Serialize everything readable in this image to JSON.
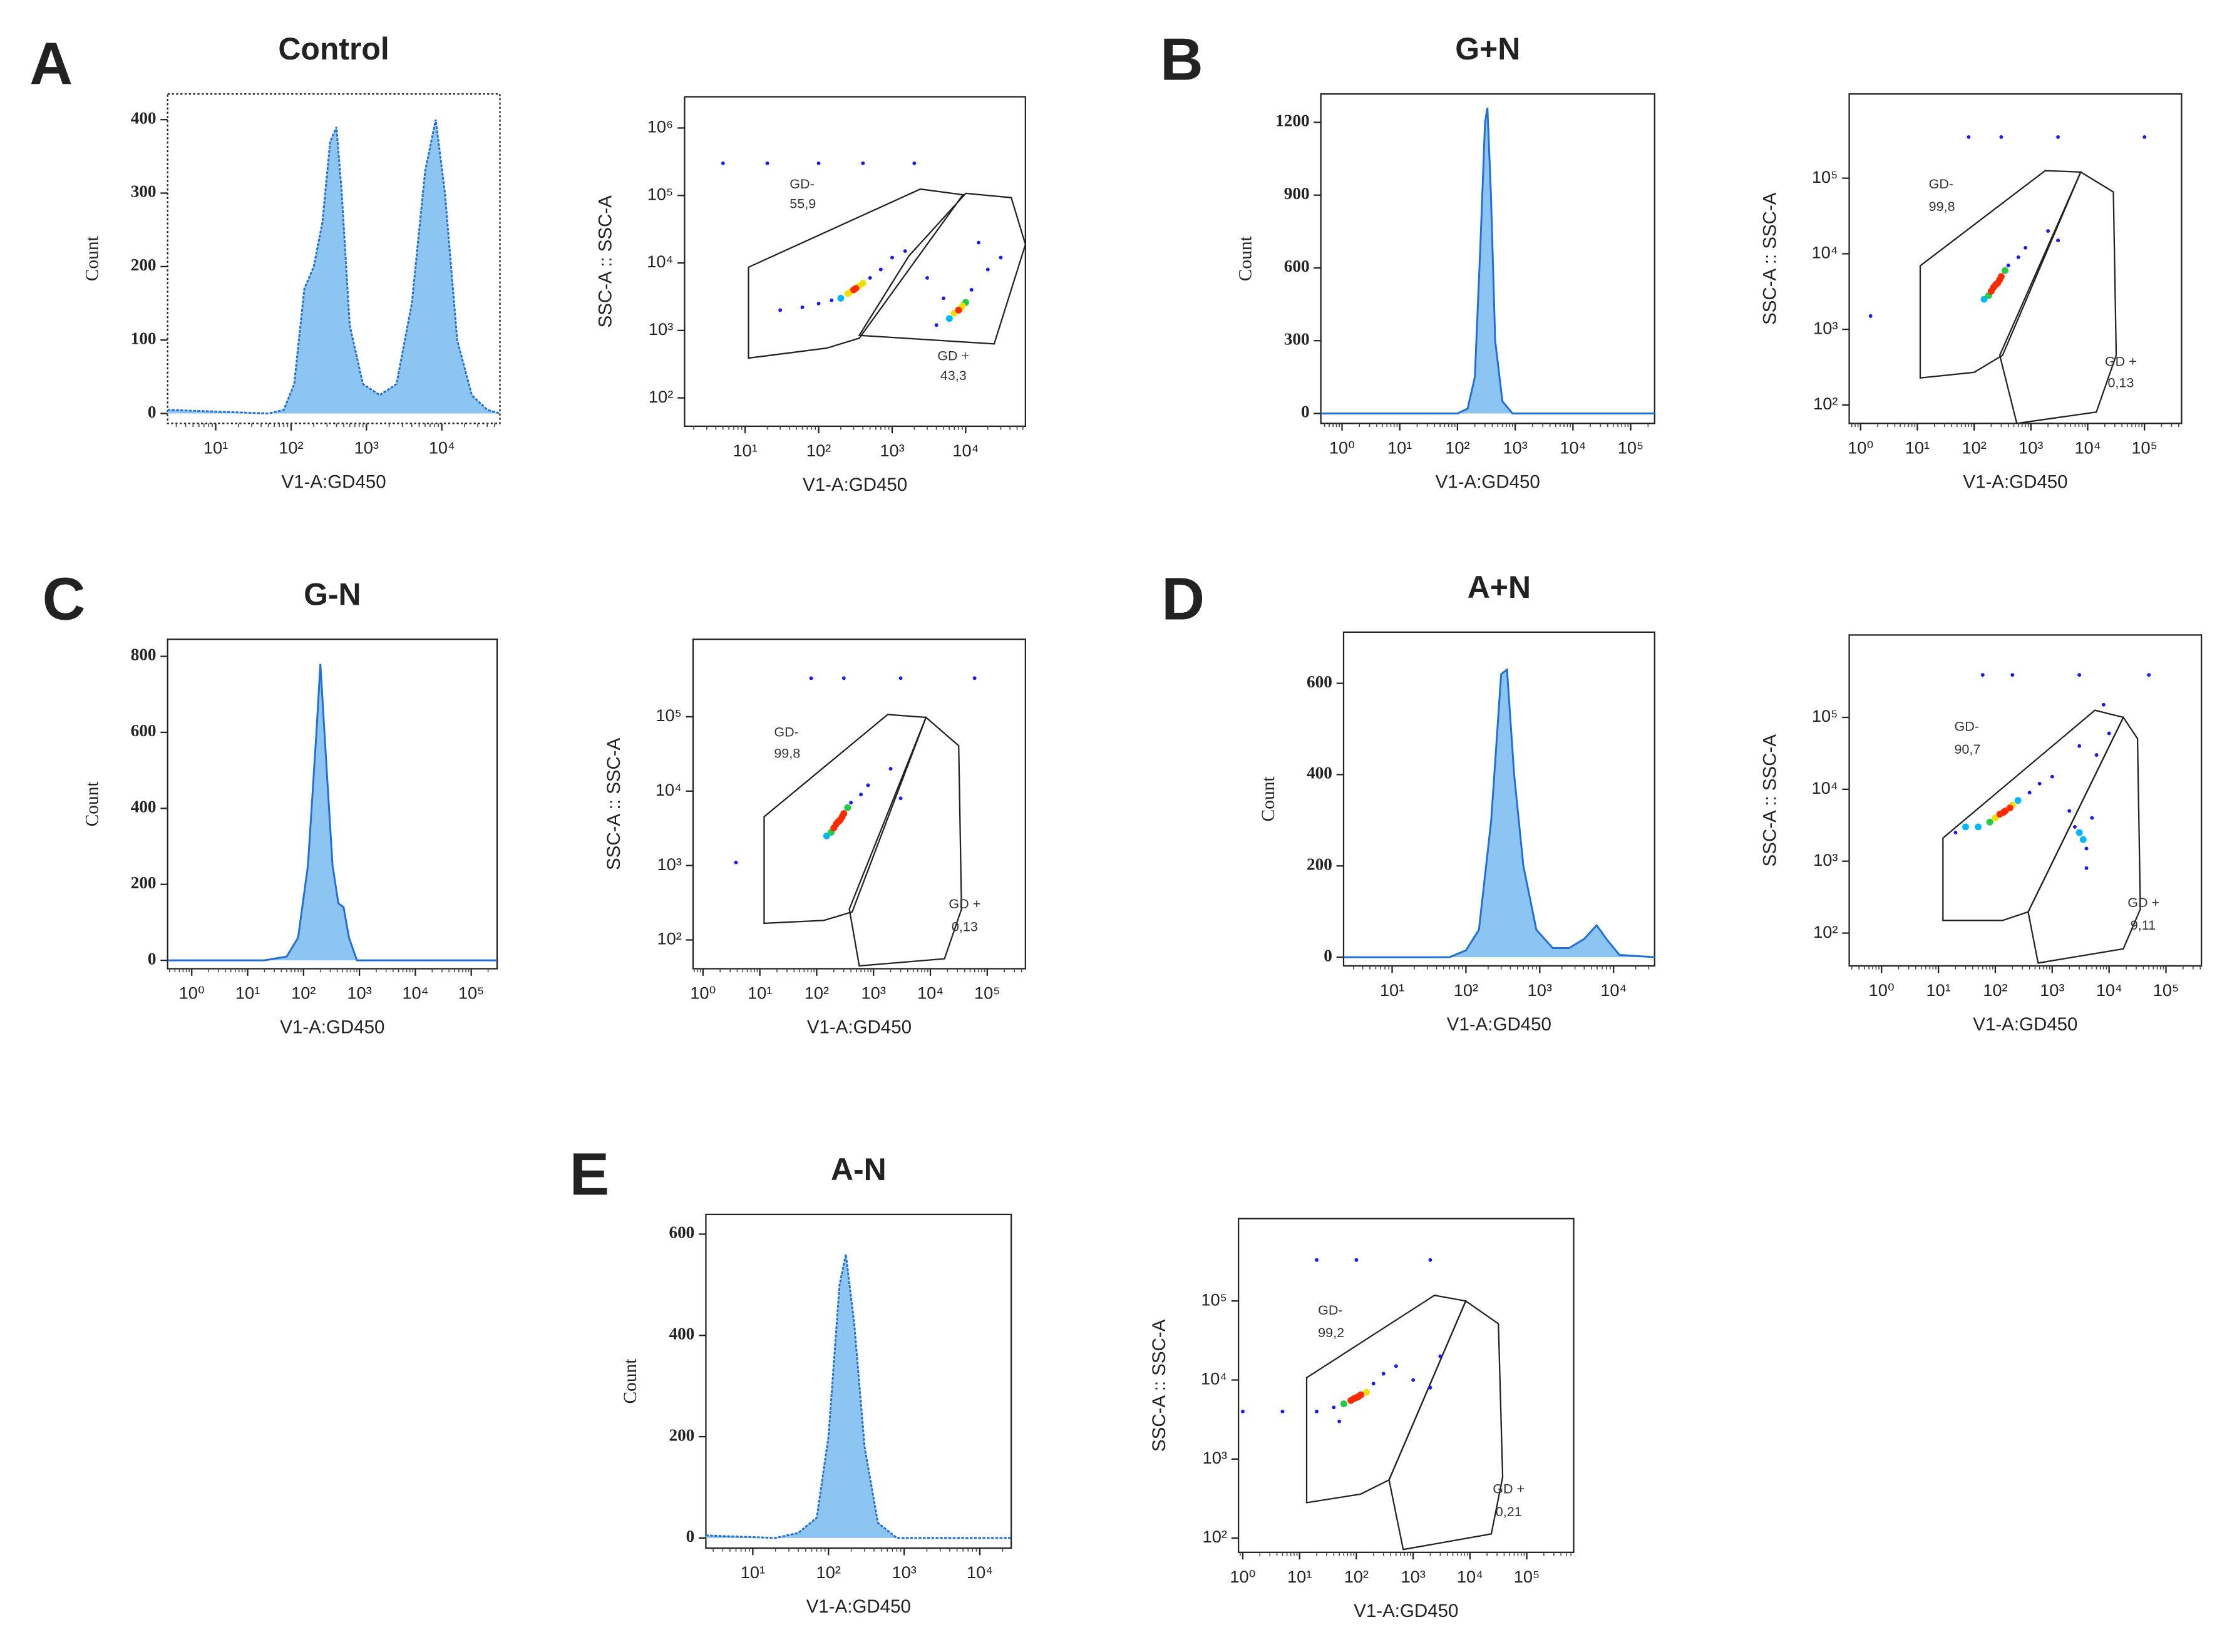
{
  "chart_data": [
    {
      "type": "area",
      "panel": "A",
      "title": "Control",
      "xlabel": "V1-A:GD450",
      "ylabel": "Count",
      "xscale": "log",
      "color": "#1f6fd6",
      "fill": "#8cc4f2",
      "x": [
        2.3,
        50,
        80,
        110,
        150,
        200,
        260,
        330,
        400,
        470,
        600,
        900,
        1500,
        2500,
        4000,
        6000,
        8300,
        11000,
        16000,
        25000,
        40000,
        59000
      ],
      "values": [
        5,
        0,
        5,
        40,
        170,
        200,
        260,
        370,
        390,
        300,
        120,
        40,
        25,
        40,
        150,
        330,
        400,
        300,
        100,
        25,
        5,
        0
      ],
      "xlim": [
        2.3,
        59000
      ],
      "ylim": [
        -13.5,
        435
      ],
      "xticks": [
        {
          "value": 10,
          "label": "10¹"
        },
        {
          "value": 100,
          "label": "10²"
        },
        {
          "value": 1000,
          "label": "10³"
        },
        {
          "value": 10000,
          "label": "10⁴"
        }
      ],
      "yticks": [
        0,
        100,
        200,
        300,
        400
      ]
    },
    {
      "type": "scatter",
      "xlabel": "V1-A:GD450",
      "ylabel": "SSC-A :: SSC-A",
      "xscale": "log",
      "yscale": "log",
      "color": "#1a1aff",
      "x": [
        300,
        250,
        350,
        200,
        400,
        280,
        320,
        150,
        500,
        100,
        60,
        700,
        1000,
        30,
        1500,
        8000,
        7000,
        9000,
        6000,
        10000,
        8500,
        5000,
        12000,
        20000,
        30000,
        3000,
        15000,
        4000,
        5,
        20,
        100,
        400,
        2000
      ],
      "values": [
        4000,
        3500,
        4500,
        3000,
        5000,
        3800,
        4200,
        2800,
        6000,
        2500,
        2200,
        8000,
        12000,
        2000,
        15000,
        2000,
        1800,
        2300,
        1500,
        2600,
        2100,
        3000,
        4000,
        8000,
        12000,
        6000,
        20000,
        1200,
        300000,
        300000,
        300000,
        300000,
        300000
      ],
      "xlim": [
        1.5,
        65000
      ],
      "ylim": [
        38,
        2900000
      ],
      "xticks": [
        {
          "value": 10,
          "label": "10¹"
        },
        {
          "value": 100,
          "label": "10²"
        },
        {
          "value": 1000,
          "label": "10³"
        },
        {
          "value": 10000,
          "label": "10⁴"
        }
      ],
      "yticks": [
        {
          "value": 100,
          "label": "10²"
        },
        {
          "value": 1000,
          "label": "10³"
        },
        {
          "value": 10000,
          "label": "10⁴"
        },
        {
          "value": 100000,
          "label": "10⁵"
        },
        {
          "value": 1000000,
          "label": "10⁶"
        }
      ],
      "gates": [
        {
          "name": "GD-",
          "value": 55.9,
          "value_label": "55,9"
        },
        {
          "name": "GD +",
          "value": 43.3,
          "value_label": "43,3"
        }
      ]
    },
    {
      "type": "area",
      "panel": "B",
      "title": "G+N",
      "xlabel": "V1-A:GD450",
      "ylabel": "Count",
      "xscale": "log",
      "color": "#1f6fd6",
      "fill": "#8cc4f2",
      "x": [
        0.43,
        100,
        150,
        200,
        250,
        300,
        330,
        380,
        450,
        600,
        900,
        260000
      ],
      "values": [
        0,
        0,
        20,
        150,
        700,
        1200,
        1260,
        900,
        300,
        50,
        0,
        0
      ],
      "xlim": [
        0.43,
        260000
      ],
      "ylim": [
        -41,
        1317
      ],
      "xticks": [
        {
          "value": 1,
          "label": "10⁰"
        },
        {
          "value": 10,
          "label": "10¹"
        },
        {
          "value": 100,
          "label": "10²"
        },
        {
          "value": 1000,
          "label": "10³"
        },
        {
          "value": 10000,
          "label": "10⁴"
        },
        {
          "value": 100000,
          "label": "10⁵"
        }
      ],
      "yticks": [
        0,
        300,
        600,
        900,
        1200
      ]
    },
    {
      "type": "scatter",
      "xlabel": "V1-A:GD450",
      "ylabel": "SSC-A :: SSC-A",
      "xscale": "log",
      "yscale": "log",
      "color": "#1a1aff",
      "x": [
        250,
        220,
        280,
        200,
        300,
        260,
        240,
        350,
        180,
        400,
        150,
        600,
        800,
        2000,
        3000,
        1.5,
        80,
        300,
        3000,
        100000
      ],
      "values": [
        4000,
        3600,
        4500,
        3200,
        5000,
        4100,
        3900,
        6000,
        2800,
        7000,
        2500,
        9000,
        12000,
        20000,
        15000,
        1500,
        350000,
        350000,
        350000,
        350000
      ],
      "xlim": [
        0.63,
        450000
      ],
      "ylim": [
        57,
        1300000
      ],
      "xticks": [
        {
          "value": 1,
          "label": "10⁰"
        },
        {
          "value": 10,
          "label": "10¹"
        },
        {
          "value": 100,
          "label": "10²"
        },
        {
          "value": 1000,
          "label": "10³"
        },
        {
          "value": 10000,
          "label": "10⁴"
        },
        {
          "value": 100000,
          "label": "10⁵"
        }
      ],
      "yticks": [
        {
          "value": 100,
          "label": "10²"
        },
        {
          "value": 1000,
          "label": "10³"
        },
        {
          "value": 10000,
          "label": "10⁴"
        },
        {
          "value": 100000,
          "label": "10⁵"
        }
      ],
      "gates": [
        {
          "name": "GD-",
          "value": 99.8,
          "value_label": "99,8"
        },
        {
          "name": "GD +",
          "value": 0.13,
          "value_label": "0,13"
        }
      ]
    },
    {
      "type": "area",
      "panel": "C",
      "title": "G-N",
      "xlabel": "V1-A:GD450",
      "ylabel": "Count",
      "xscale": "log",
      "color": "#1f6fd6",
      "fill": "#8cc4f2",
      "x": [
        0.37,
        20,
        50,
        80,
        120,
        170,
        200,
        260,
        330,
        420,
        520,
        650,
        900,
        290000
      ],
      "values": [
        0,
        0,
        10,
        60,
        250,
        600,
        780,
        500,
        250,
        150,
        140,
        60,
        0,
        0
      ],
      "xlim": [
        0.37,
        290000
      ],
      "ylim": [
        -22,
        845
      ],
      "xticks": [
        {
          "value": 1,
          "label": "10⁰"
        },
        {
          "value": 10,
          "label": "10¹"
        },
        {
          "value": 100,
          "label": "10²"
        },
        {
          "value": 1000,
          "label": "10³"
        },
        {
          "value": 10000,
          "label": "10⁴"
        },
        {
          "value": 100000,
          "label": "10⁵"
        }
      ],
      "yticks": [
        0,
        200,
        400,
        600,
        800
      ]
    },
    {
      "type": "scatter",
      "xlabel": "V1-A:GD450",
      "ylabel": "SSC-A :: SSC-A",
      "xscale": "log",
      "yscale": "log",
      "color": "#1a1aff",
      "x": [
        250,
        220,
        280,
        200,
        300,
        260,
        240,
        350,
        180,
        400,
        150,
        600,
        800,
        2000,
        3000,
        3.8,
        80,
        300,
        3000,
        60000
      ],
      "values": [
        4000,
        3600,
        4500,
        3200,
        5000,
        4100,
        3900,
        6000,
        2800,
        7000,
        2500,
        9000,
        12000,
        20000,
        8000,
        1100,
        330000,
        330000,
        330000,
        330000
      ],
      "xlim": [
        0.67,
        470000
      ],
      "ylim": [
        41,
        1100000
      ],
      "xticks": [
        {
          "value": 1,
          "label": "10⁰"
        },
        {
          "value": 10,
          "label": "10¹"
        },
        {
          "value": 100,
          "label": "10²"
        },
        {
          "value": 1000,
          "label": "10³"
        },
        {
          "value": 10000,
          "label": "10⁴"
        },
        {
          "value": 100000,
          "label": "10⁵"
        }
      ],
      "yticks": [
        {
          "value": 100,
          "label": "10²"
        },
        {
          "value": 1000,
          "label": "10³"
        },
        {
          "value": 10000,
          "label": "10⁴"
        },
        {
          "value": 100000,
          "label": "10⁵"
        }
      ],
      "gates": [
        {
          "name": "GD-",
          "value": 99.8,
          "value_label": "99,8"
        },
        {
          "name": "GD +",
          "value": 0.13,
          "value_label": "0,13"
        }
      ]
    },
    {
      "type": "area",
      "panel": "D",
      "title": "A+N",
      "xlabel": "V1-A:GD450",
      "ylabel": "Count",
      "xscale": "log",
      "color": "#1f6fd6",
      "fill": "#8cc4f2",
      "x": [
        2.2,
        60,
        100,
        150,
        220,
        300,
        360,
        450,
        600,
        900,
        1500,
        2500,
        4000,
        5900,
        8000,
        12000,
        36000
      ],
      "values": [
        0,
        0,
        15,
        60,
        300,
        620,
        630,
        400,
        200,
        60,
        20,
        20,
        40,
        70,
        40,
        5,
        0
      ],
      "xlim": [
        2.2,
        36000
      ],
      "ylim": [
        -19,
        712
      ],
      "xticks": [
        {
          "value": 10,
          "label": "10¹"
        },
        {
          "value": 100,
          "label": "10²"
        },
        {
          "value": 1000,
          "label": "10³"
        },
        {
          "value": 10000,
          "label": "10⁴"
        }
      ],
      "yticks": [
        0,
        200,
        400,
        600
      ]
    },
    {
      "type": "scatter",
      "xlabel": "V1-A:GD450",
      "ylabel": "SSC-A :: SSC-A",
      "xscale": "log",
      "yscale": "log",
      "color": "#1a1aff",
      "x": [
        150,
        120,
        180,
        100,
        200,
        140,
        80,
        250,
        50,
        30,
        20,
        400,
        600,
        1000,
        2500,
        3000,
        3500,
        4000,
        2000,
        5000,
        4000,
        6000,
        10000,
        8000,
        3000,
        60,
        200,
        3000,
        50000
      ],
      "values": [
        5000,
        4500,
        5500,
        4000,
        6000,
        4800,
        3500,
        7000,
        3000,
        3000,
        2500,
        9000,
        12000,
        15000,
        3000,
        2500,
        2000,
        1500,
        5000,
        4000,
        800,
        30000,
        60000,
        150000,
        40000,
        390000,
        390000,
        390000,
        390000
      ],
      "xlim": [
        0.27,
        420000
      ],
      "ylim": [
        35,
        1400000
      ],
      "xticks": [
        {
          "value": 1,
          "label": "10⁰"
        },
        {
          "value": 10,
          "label": "10¹"
        },
        {
          "value": 100,
          "label": "10²"
        },
        {
          "value": 1000,
          "label": "10³"
        },
        {
          "value": 10000,
          "label": "10⁴"
        },
        {
          "value": 100000,
          "label": "10⁵"
        }
      ],
      "yticks": [
        {
          "value": 100,
          "label": "10²"
        },
        {
          "value": 1000,
          "label": "10³"
        },
        {
          "value": 10000,
          "label": "10⁴"
        },
        {
          "value": 100000,
          "label": "10⁵"
        }
      ],
      "gates": [
        {
          "name": "GD-",
          "value": 90.7,
          "value_label": "90,7"
        },
        {
          "name": "GD +",
          "value": 9.11,
          "value_label": "9,11"
        }
      ]
    },
    {
      "type": "area",
      "panel": "E",
      "title": "A-N",
      "xlabel": "V1-A:GD450",
      "ylabel": "Count",
      "xscale": "log",
      "color": "#1f6fd6",
      "fill": "#8cc4f2",
      "x": [
        2.4,
        20,
        40,
        70,
        100,
        140,
        170,
        220,
        300,
        450,
        800,
        26000
      ],
      "values": [
        5,
        0,
        10,
        40,
        200,
        500,
        560,
        420,
        180,
        30,
        0,
        0
      ],
      "xlim": [
        2.4,
        26000
      ],
      "ylim": [
        -20,
        639
      ],
      "xticks": [
        {
          "value": 10,
          "label": "10¹"
        },
        {
          "value": 100,
          "label": "10²"
        },
        {
          "value": 1000,
          "label": "10³"
        },
        {
          "value": 10000,
          "label": "10⁴"
        }
      ],
      "yticks": [
        0,
        200,
        400,
        600
      ]
    },
    {
      "type": "scatter",
      "xlabel": "V1-A:GD450",
      "ylabel": "SSC-A :: SSC-A",
      "xscale": "log",
      "yscale": "log",
      "color": "#1a1aff",
      "x": [
        100,
        80,
        120,
        60,
        150,
        90,
        110,
        200,
        40,
        20,
        5,
        1,
        300,
        500,
        1000,
        2000,
        3000,
        50,
        20,
        100,
        2000
      ],
      "values": [
        6000,
        5500,
        6500,
        5000,
        7000,
        5800,
        6200,
        9000,
        4500,
        4000,
        4000,
        4000,
        12000,
        15000,
        10000,
        8000,
        20000,
        3000,
        330000,
        330000,
        330000
      ],
      "xlim": [
        0.84,
        670000
      ],
      "ylim": [
        66,
        1100000
      ],
      "xticks": [
        {
          "value": 1,
          "label": "10⁰"
        },
        {
          "value": 10,
          "label": "10¹"
        },
        {
          "value": 100,
          "label": "10²"
        },
        {
          "value": 1000,
          "label": "10³"
        },
        {
          "value": 10000,
          "label": "10⁴"
        },
        {
          "value": 100000,
          "label": "10⁵"
        }
      ],
      "yticks": [
        {
          "value": 100,
          "label": "10²"
        },
        {
          "value": 1000,
          "label": "10³"
        },
        {
          "value": 10000,
          "label": "10⁴"
        },
        {
          "value": 100000,
          "label": "10⁵"
        }
      ],
      "gates": [
        {
          "name": "GD-",
          "value": 99.2,
          "value_label": "99,2"
        },
        {
          "name": "GD +",
          "value": 0.21,
          "value_label": "0,21"
        }
      ]
    }
  ]
}
